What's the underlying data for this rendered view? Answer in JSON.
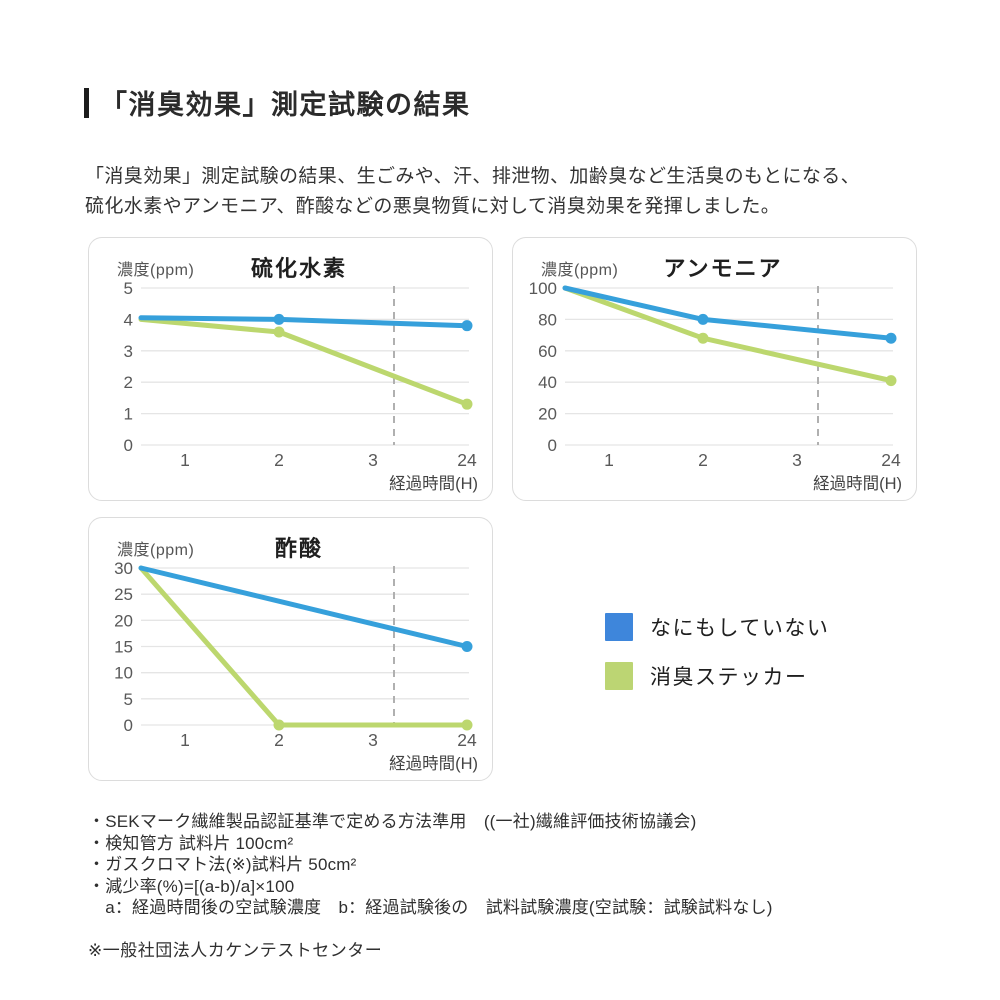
{
  "header": {
    "title": "「消臭効果」測定試験の結果",
    "body_line1": "「消臭効果」測定試験の結果、生ごみや、汗、排泄物、加齢臭など生活臭のもとになる、",
    "body_line2": "硫化水素やアンモニア、酢酸などの悪臭物質に対して消臭効果を発揮しました。"
  },
  "chart_data": [
    {
      "type": "line",
      "title": "硫化水素",
      "y_axis_label": "濃度(ppm)",
      "x_axis_label": "経過時間(H)",
      "ymax": 5,
      "y_ticks": [
        0,
        1,
        2,
        3,
        4,
        5
      ],
      "x_ticks": [
        "1",
        "2",
        "3",
        "24"
      ],
      "axis_break_dashed_line": true,
      "grid": "horizontal",
      "series": [
        {
          "name": "なにもしていない",
          "color": "#36A0DB",
          "points": [
            {
              "x": "start",
              "y": 4.05,
              "dot": false
            },
            {
              "x": "2",
              "y": 4.0,
              "dot": true
            },
            {
              "x": "24",
              "y": 3.8,
              "dot": true
            }
          ]
        },
        {
          "name": "消臭ステッカー",
          "color": "#BCD76E",
          "points": [
            {
              "x": "start",
              "y": 4.0,
              "dot": false
            },
            {
              "x": "2",
              "y": 3.6,
              "dot": true
            },
            {
              "x": "24",
              "y": 1.3,
              "dot": true
            }
          ]
        }
      ]
    },
    {
      "type": "line",
      "title": "アンモニア",
      "y_axis_label": "濃度(ppm)",
      "x_axis_label": "経過時間(H)",
      "ymax": 100,
      "y_ticks": [
        0,
        20,
        40,
        60,
        80,
        100
      ],
      "x_ticks": [
        "1",
        "2",
        "3",
        "24"
      ],
      "axis_break_dashed_line": true,
      "grid": "horizontal",
      "series": [
        {
          "name": "なにもしていない",
          "color": "#36A0DB",
          "points": [
            {
              "x": "start",
              "y": 100,
              "dot": false
            },
            {
              "x": "2",
              "y": 80,
              "dot": true
            },
            {
              "x": "24",
              "y": 68,
              "dot": true
            }
          ]
        },
        {
          "name": "消臭ステッカー",
          "color": "#BCD76E",
          "points": [
            {
              "x": "start",
              "y": 100,
              "dot": false
            },
            {
              "x": "2",
              "y": 68,
              "dot": true
            },
            {
              "x": "24",
              "y": 41,
              "dot": true
            }
          ]
        }
      ]
    },
    {
      "type": "line",
      "title": "酢酸",
      "y_axis_label": "濃度(ppm)",
      "x_axis_label": "経過時間(H)",
      "ymax": 30,
      "y_ticks": [
        0,
        5,
        10,
        15,
        20,
        25,
        30
      ],
      "x_ticks": [
        "1",
        "2",
        "3",
        "24"
      ],
      "axis_break_dashed_line": true,
      "grid": "horizontal",
      "series": [
        {
          "name": "なにもしていない",
          "color": "#36A0DB",
          "points": [
            {
              "x": "start",
              "y": 30,
              "dot": false
            },
            {
              "x": "24",
              "y": 15,
              "dot": true
            }
          ]
        },
        {
          "name": "消臭ステッカー",
          "color": "#BCD76E",
          "points": [
            {
              "x": "start",
              "y": 30,
              "dot": false
            },
            {
              "x": "2",
              "y": 0,
              "dot": true
            },
            {
              "x": "24",
              "y": 0,
              "dot": true
            }
          ]
        }
      ]
    }
  ],
  "legend": {
    "items": [
      {
        "label": "なにもしていない",
        "color": "#3E86DB"
      },
      {
        "label": "消臭ステッカー",
        "color": "#BCD573"
      }
    ]
  },
  "footnotes": {
    "lines": [
      "・SEKマーク繊維製品認証基準で定める方法準用　((一社)繊維評価技術協議会)",
      "・検知管方 試料片 100cm²",
      "・ガスクロマト法(※)試料片 50cm²",
      "・減少率(%)=[(a-b)/a]×100",
      "　a：経過時間後の空試験濃度　b：経過試験後の　試料試験濃度(空試験：試験試料なし)"
    ],
    "org": "※一般社団法人カケンテストセンター"
  },
  "colors": {
    "line_blue": "#36A0DB",
    "line_green": "#BCD76E",
    "gridline": "#e5e5e5",
    "dashed_break_line": "#b0b0b0",
    "tick_text": "#595959",
    "panel_border": "#dcdcdc"
  }
}
